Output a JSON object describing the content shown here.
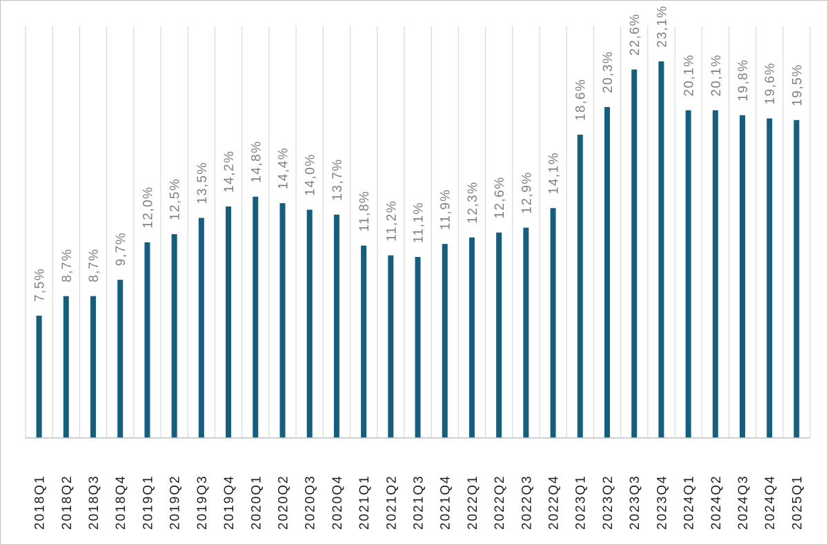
{
  "chart_data": {
    "type": "bar",
    "title": "",
    "xlabel": "",
    "ylabel": "",
    "ylim": [
      0,
      25
    ],
    "grid": "vertical",
    "legend": "none",
    "categories": [
      "2018Q1",
      "2018Q2",
      "2018Q3",
      "2018Q4",
      "2019Q1",
      "2019Q2",
      "2019Q3",
      "2019Q4",
      "2020Q1",
      "2020Q2",
      "2020Q3",
      "2020Q4",
      "2021Q1",
      "2021Q2",
      "2021Q3",
      "2021Q4",
      "2022Q1",
      "2022Q2",
      "2022Q3",
      "2022Q4",
      "2023Q1",
      "2023Q2",
      "2023Q3",
      "2023Q4",
      "2024Q1",
      "2024Q2",
      "2024Q3",
      "2024Q4",
      "2025Q1"
    ],
    "values": [
      7.5,
      8.7,
      8.7,
      9.7,
      12.0,
      12.5,
      13.5,
      14.2,
      14.8,
      14.4,
      14.0,
      13.7,
      11.8,
      11.2,
      11.1,
      11.9,
      12.3,
      12.6,
      12.9,
      14.1,
      18.6,
      20.3,
      22.6,
      23.1,
      20.1,
      20.1,
      19.8,
      19.6,
      19.5
    ],
    "data_labels": [
      "7,5%",
      "8,7%",
      "8,7%",
      "9,7%",
      "12,0%",
      "12,5%",
      "13,5%",
      "14,2%",
      "14,8%",
      "14,4%",
      "14,0%",
      "13,7%",
      "11,8%",
      "11,2%",
      "11,1%",
      "11,9%",
      "12,3%",
      "12,6%",
      "12,9%",
      "14,1%",
      "18,6%",
      "20,3%",
      "22,6%",
      "23,1%",
      "20,1%",
      "20,1%",
      "19,8%",
      "19,6%",
      "19,5%"
    ],
    "colors": {
      "bar": "#145f7f",
      "grid": "#d9d9d9",
      "axis": "#bfbfbf",
      "data_label": "#7f7f7f",
      "tick_label": "#1f1f1f"
    }
  }
}
